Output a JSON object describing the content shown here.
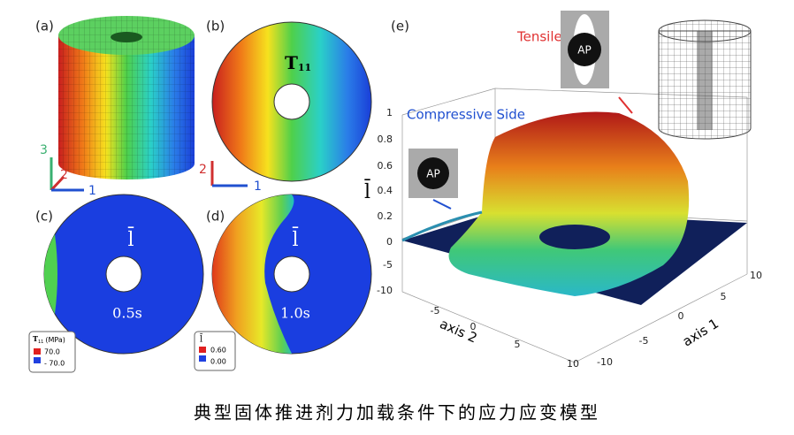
{
  "panels": {
    "a": {
      "label": "(a)",
      "axes": [
        "3",
        "2",
        "1"
      ]
    },
    "b": {
      "label": "(b)",
      "field": {
        "symbol": "T",
        "subscript": "11"
      },
      "axes": [
        "2",
        "1"
      ]
    },
    "c": {
      "label": "(c)",
      "field": "l̄",
      "time": "0.5s",
      "legend": {
        "symbol": "T",
        "subscript": "11",
        "unit": "(MPa)",
        "max": "70.0",
        "min": "- 70.0"
      }
    },
    "d": {
      "label": "(d)",
      "field": "l̄",
      "time": "1.0s",
      "legend": {
        "symbol": "l̄",
        "max": "0.60",
        "min": "0.00"
      }
    },
    "e": {
      "label": "(e)",
      "tensile": "Tensile Side",
      "compressive": "Compressive Side",
      "ap": [
        "AP",
        "AP"
      ],
      "zlabel": "l̄",
      "xlabel": "axis 2",
      "ylabel": "axis 1",
      "zticks": [
        "1",
        "0.8",
        "0.6",
        "0.4",
        "0.2",
        "0",
        "-5",
        "-10"
      ],
      "xticks": [
        "-5",
        "0",
        "5",
        "10"
      ],
      "yticks": [
        "10",
        "5",
        "0",
        "-5",
        "-10"
      ]
    }
  },
  "caption": "典型固体推进剂力加载条件下的应力应变模型"
}
